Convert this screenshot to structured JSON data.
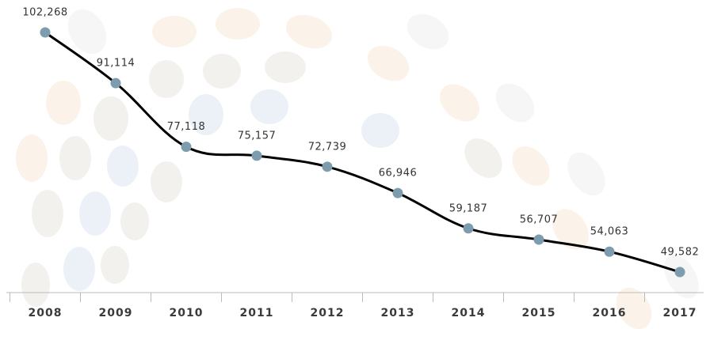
{
  "chart_data": {
    "type": "line",
    "categories": [
      "2008",
      "2009",
      "2010",
      "2011",
      "2012",
      "2013",
      "2014",
      "2015",
      "2016",
      "2017"
    ],
    "values": [
      102268,
      91114,
      77118,
      75157,
      72739,
      66946,
      59187,
      56707,
      54063,
      49582
    ],
    "value_labels": [
      "102,268",
      "91,114",
      "77,118",
      "75,157",
      "72,739",
      "66,946",
      "59,187",
      "56,707",
      "54,063",
      "49,582"
    ],
    "color": "#000000",
    "marker_color": "#7d9cad"
  }
}
